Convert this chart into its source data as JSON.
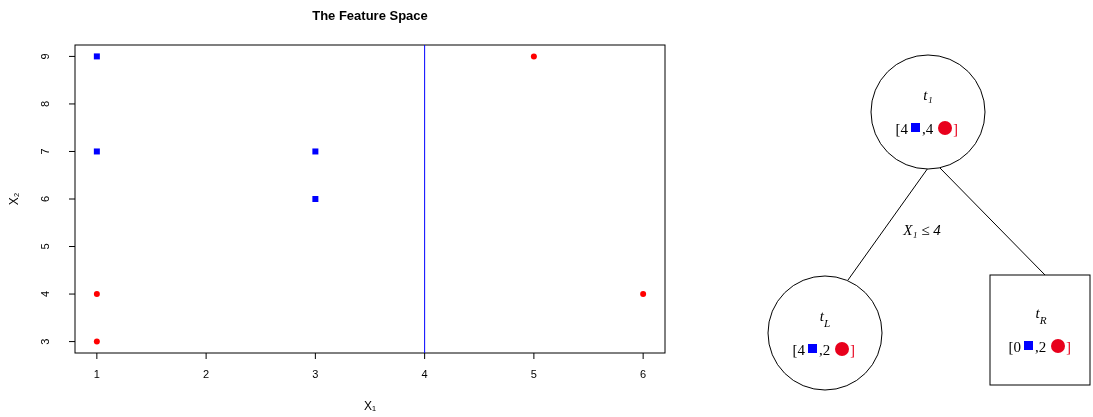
{
  "chart_data": [
    {
      "type": "scatter",
      "title": "The Feature Space",
      "xlabel": "X₁",
      "ylabel": "X₂",
      "xlim": [
        0.8,
        6.2
      ],
      "ylim": [
        2.76,
        9.24
      ],
      "xticks": [
        1,
        2,
        3,
        4,
        5,
        6
      ],
      "yticks": [
        3,
        4,
        5,
        6,
        7,
        8,
        9
      ],
      "grid": false,
      "series": [
        {
          "color": "#0000ff",
          "marker": "square",
          "x": [
            1,
            1,
            3,
            3
          ],
          "values": [
            9,
            7,
            7,
            6
          ]
        },
        {
          "color": "#ff0000",
          "marker": "circle",
          "x": [
            1,
            1,
            5,
            6
          ],
          "values": [
            4,
            3,
            9,
            4
          ]
        }
      ],
      "ref_lines": [
        {
          "axis": "x",
          "value": 4,
          "color": "#0000ff"
        }
      ]
    },
    {
      "type": "other",
      "annotations": [
        "t₁",
        "[4",
        ",4",
        "]",
        "X₁ ≤ 4",
        "t$_{L}$",
        "[4",
        ",2",
        "]",
        "t$_{R}$",
        "[0",
        ",2",
        "]"
      ]
    }
  ]
}
